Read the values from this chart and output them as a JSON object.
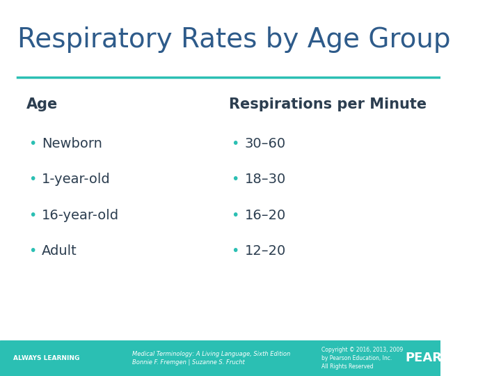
{
  "title": "Respiratory Rates by Age Group",
  "title_color": "#2E5B8A",
  "background_color": "#FFFFFF",
  "header_line_color": "#2BBFB3",
  "col1_header": "Age",
  "col2_header": "Respirations per Minute",
  "col1_items": [
    "Newborn",
    "1-year-old",
    "16-year-old",
    "Adult"
  ],
  "col2_items": [
    "30–60",
    "18–30",
    "16–20",
    "12–20"
  ],
  "footer_bg_color": "#2BBFB3",
  "footer_left": "ALWAYS LEARNING",
  "footer_center_line1": "Medical Terminology: A Living Language, Sixth Edition",
  "footer_center_line2": "Bonnie F. Fremgen | Suzanne S. Frucht",
  "footer_right_line1": "Copyright © 2016, 2013, 2009",
  "footer_right_line2": "by Pearson Education, Inc.",
  "footer_right_line3": "All Rights Reserved",
  "footer_pearson": "PEARSON",
  "text_color_dark": "#2C3E50",
  "bullet_color": "#2BBFB3"
}
